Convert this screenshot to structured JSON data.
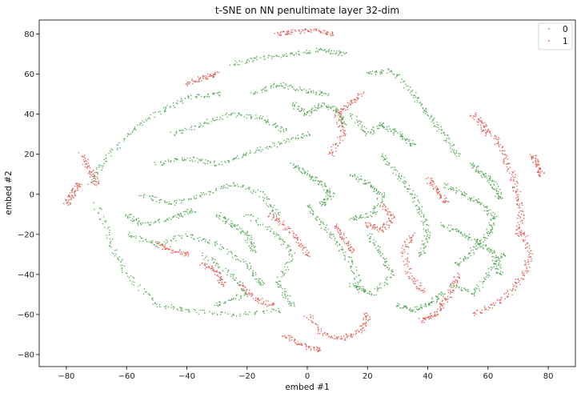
{
  "chart_data": {
    "type": "scatter",
    "title": "t-SNE on NN penultimate layer 32-dim",
    "xlabel": "embed #1",
    "ylabel": "embed #2",
    "xlim": [
      -89,
      89
    ],
    "ylim": [
      -86,
      87
    ],
    "xticks": [
      -80,
      -60,
      -40,
      -20,
      0,
      20,
      40,
      60,
      80
    ],
    "yticks": [
      -80,
      -60,
      -40,
      -20,
      0,
      20,
      40,
      60,
      80
    ],
    "grid": false,
    "legend_position": "top-right",
    "series": [
      {
        "name": "0",
        "color": "#4fa84f"
      },
      {
        "name": "1",
        "color": "#e35b52"
      }
    ],
    "clusters": [
      {
        "series": "0",
        "points": [
          [
            -70,
            -5
          ],
          [
            -65,
            -25
          ],
          [
            -60,
            -40
          ],
          [
            -50,
            -55
          ],
          [
            -40,
            -58
          ],
          [
            -25,
            -60
          ],
          [
            -10,
            -58
          ]
        ]
      },
      {
        "series": "0",
        "points": [
          [
            -72,
            5
          ],
          [
            -68,
            15
          ],
          [
            -60,
            30
          ],
          [
            -50,
            40
          ],
          [
            -40,
            48
          ],
          [
            -30,
            50
          ]
        ]
      },
      {
        "series": "0",
        "points": [
          [
            -60,
            -20
          ],
          [
            -50,
            -25
          ],
          [
            -40,
            -20
          ],
          [
            -30,
            -25
          ],
          [
            -20,
            -35
          ],
          [
            -15,
            -45
          ]
        ]
      },
      {
        "series": "0",
        "points": [
          [
            -55,
            0
          ],
          [
            -45,
            -5
          ],
          [
            -35,
            0
          ],
          [
            -25,
            5
          ],
          [
            -15,
            0
          ],
          [
            -10,
            -10
          ]
        ]
      },
      {
        "series": "0",
        "points": [
          [
            -50,
            15
          ],
          [
            -40,
            18
          ],
          [
            -30,
            15
          ],
          [
            -20,
            20
          ],
          [
            -10,
            25
          ],
          [
            0,
            30
          ]
        ]
      },
      {
        "series": "0",
        "points": [
          [
            -45,
            30
          ],
          [
            -35,
            35
          ],
          [
            -25,
            40
          ],
          [
            -15,
            38
          ],
          [
            -8,
            32
          ]
        ]
      },
      {
        "series": "0",
        "points": [
          [
            -20,
            -10
          ],
          [
            -10,
            -20
          ],
          [
            -5,
            -30
          ],
          [
            -10,
            -45
          ],
          [
            -5,
            -55
          ]
        ]
      },
      {
        "series": "0",
        "points": [
          [
            -25,
            65
          ],
          [
            -15,
            68
          ],
          [
            -5,
            70
          ],
          [
            5,
            72
          ],
          [
            12,
            70
          ]
        ]
      },
      {
        "series": "0",
        "points": [
          [
            0,
            -5
          ],
          [
            5,
            -15
          ],
          [
            10,
            -25
          ],
          [
            15,
            -35
          ],
          [
            18,
            -48
          ]
        ]
      },
      {
        "series": "0",
        "points": [
          [
            -35,
            -30
          ],
          [
            -25,
            -40
          ],
          [
            -20,
            -50
          ],
          [
            -30,
            -55
          ]
        ]
      },
      {
        "series": "0",
        "points": [
          [
            -60,
            -10
          ],
          [
            -55,
            -15
          ],
          [
            -45,
            -12
          ],
          [
            -38,
            -8
          ]
        ]
      },
      {
        "series": "0",
        "points": [
          [
            20,
            60
          ],
          [
            28,
            62
          ],
          [
            35,
            50
          ],
          [
            40,
            40
          ],
          [
            45,
            30
          ],
          [
            50,
            20
          ]
        ]
      },
      {
        "series": "0",
        "points": [
          [
            25,
            20
          ],
          [
            30,
            10
          ],
          [
            35,
            0
          ],
          [
            38,
            -10
          ],
          [
            40,
            -20
          ],
          [
            38,
            -30
          ]
        ]
      },
      {
        "series": "0",
        "points": [
          [
            15,
            40
          ],
          [
            20,
            30
          ],
          [
            25,
            35
          ],
          [
            30,
            30
          ],
          [
            35,
            25
          ]
        ]
      },
      {
        "series": "0",
        "points": [
          [
            45,
            5
          ],
          [
            52,
            0
          ],
          [
            58,
            -5
          ],
          [
            62,
            -12
          ],
          [
            60,
            -20
          ],
          [
            55,
            -28
          ],
          [
            50,
            -35
          ]
        ]
      },
      {
        "series": "0",
        "points": [
          [
            48,
            -45
          ],
          [
            55,
            -50
          ],
          [
            60,
            -40
          ],
          [
            65,
            -30
          ]
        ]
      },
      {
        "series": "0",
        "points": [
          [
            20,
            -20
          ],
          [
            25,
            -30
          ],
          [
            28,
            -40
          ],
          [
            22,
            -50
          ],
          [
            15,
            -45
          ]
        ]
      },
      {
        "series": "0",
        "points": [
          [
            15,
            10
          ],
          [
            20,
            5
          ],
          [
            25,
            0
          ],
          [
            22,
            -10
          ],
          [
            15,
            -12
          ]
        ]
      },
      {
        "series": "0",
        "points": [
          [
            -5,
            15
          ],
          [
            0,
            10
          ],
          [
            5,
            5
          ],
          [
            8,
            0
          ],
          [
            5,
            -5
          ]
        ]
      },
      {
        "series": "0",
        "points": [
          [
            -30,
            -10
          ],
          [
            -25,
            -15
          ],
          [
            -20,
            -20
          ],
          [
            -18,
            -28
          ]
        ]
      },
      {
        "series": "0",
        "points": [
          [
            30,
            -55
          ],
          [
            35,
            -58
          ],
          [
            40,
            -55
          ],
          [
            45,
            -50
          ]
        ]
      },
      {
        "series": "0",
        "points": [
          [
            -5,
            45
          ],
          [
            0,
            40
          ],
          [
            5,
            45
          ],
          [
            10,
            42
          ],
          [
            12,
            35
          ]
        ]
      },
      {
        "series": "0",
        "points": [
          [
            45,
            -15
          ],
          [
            52,
            -20
          ],
          [
            58,
            -25
          ],
          [
            62,
            -30
          ],
          [
            64,
            -40
          ]
        ]
      },
      {
        "series": "0",
        "points": [
          [
            -18,
            50
          ],
          [
            -10,
            55
          ],
          [
            -2,
            52
          ],
          [
            6,
            50
          ]
        ]
      },
      {
        "series": "0",
        "points": [
          [
            55,
            15
          ],
          [
            58,
            10
          ],
          [
            62,
            5
          ],
          [
            64,
            -2
          ]
        ]
      },
      {
        "series": "1",
        "points": [
          [
            55,
            -60
          ],
          [
            62,
            -55
          ],
          [
            68,
            -48
          ],
          [
            72,
            -40
          ],
          [
            74,
            -30
          ],
          [
            72,
            -20
          ]
        ]
      },
      {
        "series": "1",
        "points": [
          [
            62,
            30
          ],
          [
            65,
            20
          ],
          [
            68,
            10
          ],
          [
            70,
            0
          ],
          [
            71,
            -10
          ],
          [
            70,
            -20
          ]
        ]
      },
      {
        "series": "1",
        "points": [
          [
            0,
            -60
          ],
          [
            5,
            -70
          ],
          [
            12,
            -72
          ],
          [
            18,
            -68
          ],
          [
            20,
            -60
          ]
        ]
      },
      {
        "series": "1",
        "points": [
          [
            -10,
            80
          ],
          [
            -5,
            81
          ],
          [
            2,
            82
          ],
          [
            8,
            80
          ]
        ]
      },
      {
        "series": "1",
        "points": [
          [
            -75,
            20
          ],
          [
            -72,
            12
          ],
          [
            -70,
            5
          ]
        ]
      },
      {
        "series": "1",
        "points": [
          [
            18,
            50
          ],
          [
            14,
            45
          ],
          [
            10,
            40
          ],
          [
            12,
            30
          ],
          [
            8,
            20
          ]
        ]
      },
      {
        "series": "1",
        "points": [
          [
            -12,
            -10
          ],
          [
            -8,
            -15
          ],
          [
            -3,
            -22
          ],
          [
            0,
            -30
          ]
        ]
      },
      {
        "series": "1",
        "points": [
          [
            35,
            -20
          ],
          [
            32,
            -28
          ],
          [
            34,
            -40
          ],
          [
            38,
            -48
          ]
        ]
      },
      {
        "series": "1",
        "points": [
          [
            -35,
            -35
          ],
          [
            -30,
            -38
          ],
          [
            -28,
            -45
          ]
        ]
      },
      {
        "series": "1",
        "points": [
          [
            50,
            -40
          ],
          [
            48,
            -48
          ],
          [
            45,
            -55
          ],
          [
            42,
            -60
          ],
          [
            38,
            -63
          ]
        ]
      },
      {
        "series": "1",
        "points": [
          [
            55,
            40
          ],
          [
            58,
            35
          ],
          [
            60,
            30
          ]
        ]
      },
      {
        "series": "1",
        "points": [
          [
            -40,
            55
          ],
          [
            -35,
            58
          ],
          [
            -30,
            60
          ]
        ]
      },
      {
        "series": "1",
        "points": [
          [
            25,
            -5
          ],
          [
            28,
            -12
          ],
          [
            25,
            -18
          ],
          [
            20,
            -15
          ]
        ]
      },
      {
        "series": "1",
        "points": [
          [
            -8,
            -70
          ],
          [
            -2,
            -75
          ],
          [
            4,
            -78
          ]
        ]
      },
      {
        "series": "1",
        "points": [
          [
            75,
            20
          ],
          [
            76,
            15
          ],
          [
            78,
            10
          ]
        ]
      },
      {
        "series": "1",
        "points": [
          [
            -22,
            -45
          ],
          [
            -18,
            -52
          ],
          [
            -12,
            -55
          ]
        ]
      },
      {
        "series": "1",
        "points": [
          [
            10,
            -15
          ],
          [
            12,
            -22
          ],
          [
            15,
            -28
          ]
        ]
      },
      {
        "series": "1",
        "points": [
          [
            -50,
            -25
          ],
          [
            -45,
            -28
          ],
          [
            -40,
            -30
          ]
        ]
      },
      {
        "series": "1",
        "points": [
          [
            40,
            8
          ],
          [
            43,
            2
          ],
          [
            46,
            -4
          ]
        ]
      },
      {
        "series": "1",
        "points": [
          [
            -80,
            -5
          ],
          [
            -78,
            0
          ],
          [
            -76,
            5
          ]
        ]
      }
    ]
  }
}
